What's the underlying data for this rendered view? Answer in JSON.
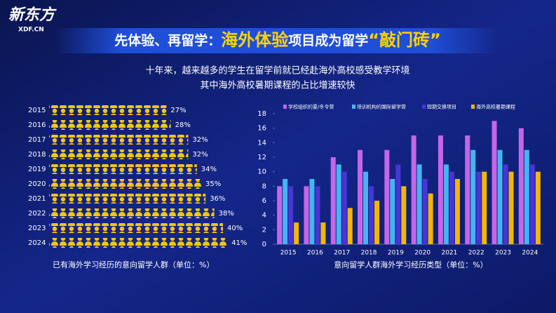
{
  "header": {
    "logo": "新东方",
    "logo_sub": "XDF.CN",
    "title_parts": [
      "先体验、再留学：",
      "海外体验",
      "项目成为留学",
      "“敲门砖”"
    ],
    "subtitle_lines": [
      "十年来，越来越多的学生在留学前就已经赴海外高校感受教学环境",
      "其中海外高校暑期课程的占比增速较快"
    ]
  },
  "chart_data": [
    {
      "type": "pictogram",
      "caption": "已有海外学习经历的意向留学人群（单位：%）",
      "categories": [
        "2015",
        "2016",
        "2017",
        "2018",
        "2019",
        "2020",
        "2021",
        "2022",
        "2023",
        "2024"
      ],
      "values": [
        27,
        28,
        32,
        32,
        34,
        35,
        36,
        38,
        40,
        41
      ],
      "value_labels": [
        "27%",
        "28%",
        "32%",
        "32%",
        "34%",
        "35%",
        "36%",
        "38%",
        "40%",
        "41%"
      ],
      "color": "#f5c518"
    },
    {
      "type": "bar",
      "caption": "意向留学人群海外学习经历类型（单位：%）",
      "categories": [
        "2015",
        "2016",
        "2017",
        "2018",
        "2019",
        "2020",
        "2021",
        "2022",
        "2023",
        "2024"
      ],
      "ylim": [
        0,
        18
      ],
      "yticks": [
        0,
        2,
        4,
        6,
        8,
        10,
        12,
        14,
        16,
        18
      ],
      "series": [
        {
          "name": "学校组织的夏/冬令营",
          "color": "#c466e6",
          "values": [
            8,
            8,
            12,
            13,
            13,
            15,
            15,
            15,
            17,
            16
          ]
        },
        {
          "name": "培训机构的国际留学营",
          "color": "#45b4f2",
          "values": [
            9,
            9,
            11,
            10,
            9,
            11,
            11,
            13,
            13,
            13
          ]
        },
        {
          "name": "短期交换项目",
          "color": "#4a34d6",
          "values": [
            8,
            8,
            10,
            8,
            11,
            9,
            10,
            10,
            11,
            11
          ]
        },
        {
          "name": "海外高校暑期课程",
          "color": "#f2b705",
          "values": [
            3,
            3,
            5,
            6,
            8,
            7,
            9,
            10,
            10,
            10
          ]
        }
      ]
    }
  ]
}
